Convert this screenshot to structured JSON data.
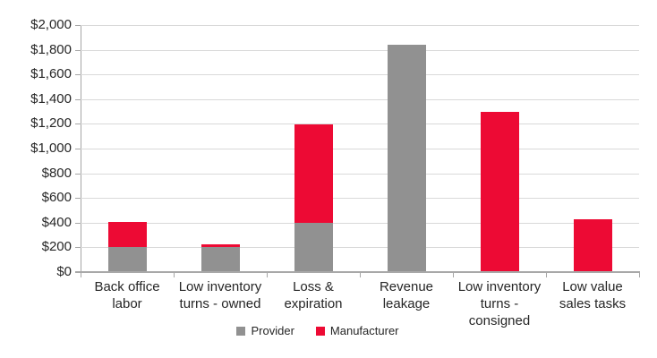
{
  "chart_data": {
    "type": "bar",
    "stacked": true,
    "title": "",
    "categories": [
      "Back office labor",
      "Low inventory turns - owned",
      "Loss & expiration",
      "Revenue leakage",
      "Low inventory turns - consigned",
      "Low value sales tasks"
    ],
    "series": [
      {
        "name": "Provider",
        "color": "#919191",
        "values": [
          200,
          200,
          400,
          1840,
          0,
          0
        ]
      },
      {
        "name": "Manufacturer",
        "color": "#ed0a34",
        "values": [
          200,
          20,
          800,
          0,
          1300,
          430
        ]
      }
    ],
    "totals": [
      400,
      220,
      1200,
      1840,
      1300,
      430
    ],
    "xlabel": "",
    "ylabel": "",
    "ylim": [
      0,
      2000
    ],
    "ytick_step": 200,
    "ytick_labels": [
      "$2,000",
      "$1,800",
      "$1,600",
      "$1,400",
      "$1,200",
      "$1,000",
      "$800",
      "$600",
      "$400",
      "$200",
      "$0"
    ],
    "grid": true,
    "legend_position": "bottom",
    "legend_entries": [
      "Provider",
      "Manufacturer"
    ]
  },
  "colors": {
    "provider": "#919191",
    "manufacturer": "#ed0a34",
    "gridline": "#d9d9d9",
    "axis": "#a6a6a6",
    "text": "#262626",
    "background": "#ffffff"
  }
}
